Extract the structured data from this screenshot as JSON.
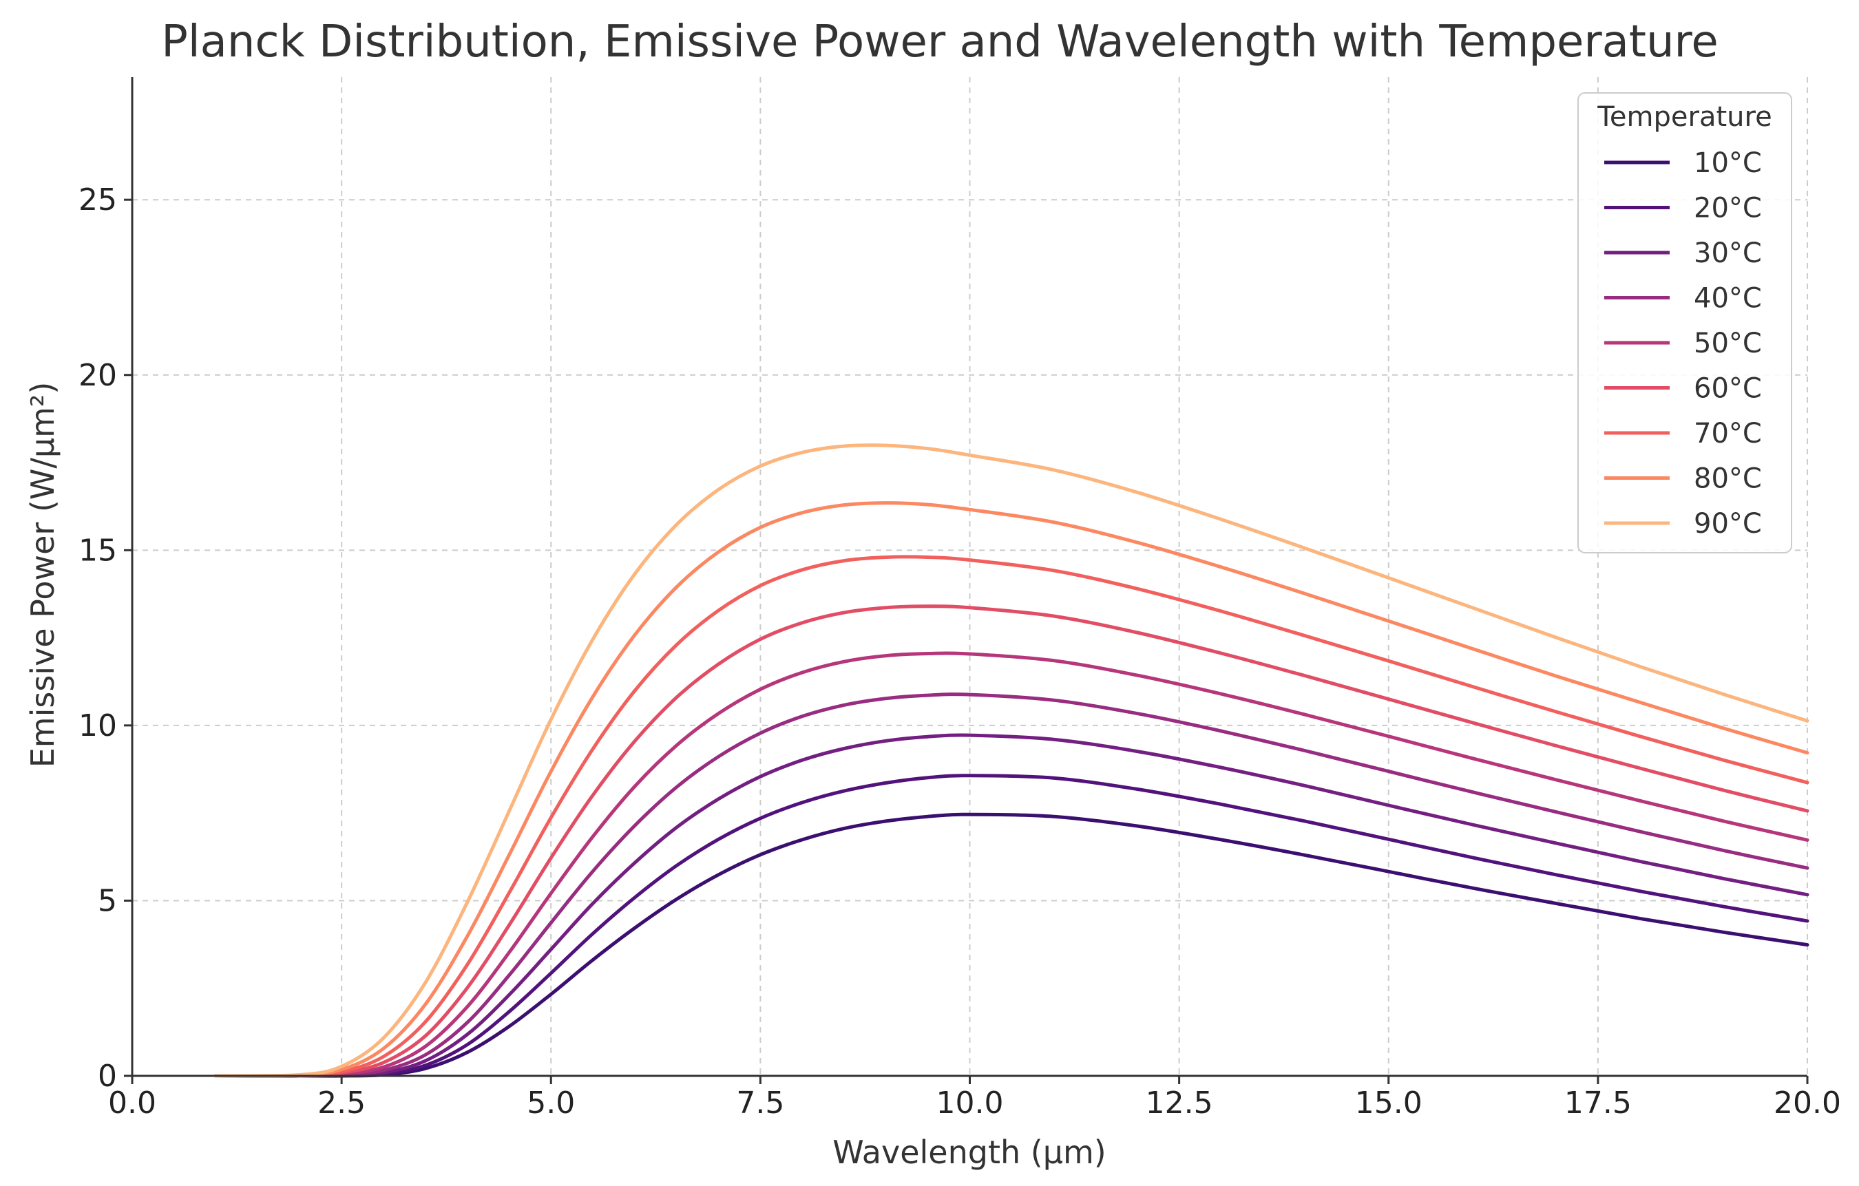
{
  "chart_data": {
    "type": "line",
    "title": "Planck Distribution, Emissive Power and Wavelength with Temperature",
    "xlabel": "Wavelength (µm)",
    "ylabel": "Emissive Power (W/µm²)",
    "xlim": [
      0,
      20
    ],
    "ylim": [
      0,
      28.5
    ],
    "x_ticks": [
      0,
      2.5,
      5,
      7.5,
      10,
      12.5,
      15,
      17.5,
      20
    ],
    "x_tick_labels": [
      "0.0",
      "2.5",
      "5.0",
      "7.5",
      "10.0",
      "12.5",
      "15.0",
      "17.5",
      "20.0"
    ],
    "y_ticks": [
      0,
      5,
      10,
      15,
      20,
      25
    ],
    "y_tick_labels": [
      "0",
      "5",
      "10",
      "15",
      "20",
      "25"
    ],
    "grid": true,
    "legend": {
      "title": "Temperature",
      "position": "top-right"
    },
    "x": [
      1,
      2,
      2.5,
      3,
      3.5,
      4,
      4.5,
      5,
      5.5,
      6,
      6.5,
      7,
      7.5,
      8,
      8.5,
      9,
      9.5,
      10,
      11,
      12,
      13,
      14,
      15,
      16,
      17,
      18,
      19,
      20
    ],
    "series": [
      {
        "name": "10°C",
        "color": "#3b0f70",
        "values": [
          0,
          0,
          0,
          0.03,
          0.21,
          0.67,
          1.41,
          2.33,
          3.31,
          4.22,
          5.04,
          5.74,
          6.31,
          6.74,
          7.06,
          7.27,
          7.4,
          7.46,
          7.4,
          7.13,
          6.74,
          6.3,
          5.83,
          5.36,
          4.92,
          4.49,
          4.1,
          3.74
        ]
      },
      {
        "name": "20°C",
        "color": "#51127c",
        "values": [
          0,
          0,
          0.01,
          0.05,
          0.3,
          0.89,
          1.83,
          2.93,
          4.06,
          5.09,
          6.0,
          6.75,
          7.35,
          7.8,
          8.13,
          8.36,
          8.51,
          8.57,
          8.5,
          8.18,
          7.75,
          7.27,
          6.75,
          6.23,
          5.74,
          5.27,
          4.83,
          4.42
        ]
      },
      {
        "name": "30°C",
        "color": "#721f81",
        "values": [
          0,
          0,
          0.02,
          0.09,
          0.43,
          1.18,
          2.31,
          3.61,
          4.92,
          6.08,
          7.09,
          7.9,
          8.54,
          9.01,
          9.34,
          9.56,
          9.68,
          9.72,
          9.6,
          9.26,
          8.8,
          8.28,
          7.72,
          7.17,
          6.64,
          6.12,
          5.63,
          5.17
        ]
      },
      {
        "name": "40°C",
        "color": "#972c80",
        "values": [
          0,
          0,
          0.03,
          0.16,
          0.6,
          1.52,
          2.87,
          4.37,
          5.84,
          7.14,
          8.24,
          9.11,
          9.78,
          10.26,
          10.58,
          10.77,
          10.86,
          10.88,
          10.72,
          10.34,
          9.84,
          9.28,
          8.69,
          8.1,
          7.53,
          6.97,
          6.43,
          5.93
        ]
      },
      {
        "name": "50°C",
        "color": "#b5367a",
        "values": [
          0,
          0,
          0.05,
          0.25,
          0.84,
          1.97,
          3.52,
          5.21,
          6.83,
          8.26,
          9.43,
          10.34,
          11.03,
          11.51,
          11.82,
          11.99,
          12.05,
          12.04,
          11.85,
          11.43,
          10.9,
          10.31,
          9.69,
          9.06,
          8.45,
          7.85,
          7.27,
          6.73
        ]
      },
      {
        "name": "60°C",
        "color": "#e14d65",
        "values": [
          0,
          0,
          0.08,
          0.38,
          1.14,
          2.51,
          4.3,
          6.22,
          8.01,
          9.55,
          10.8,
          11.75,
          12.46,
          12.93,
          13.22,
          13.36,
          13.4,
          13.36,
          13.12,
          12.65,
          12.06,
          11.42,
          10.75,
          10.08,
          9.42,
          8.78,
          8.15,
          7.56
        ]
      },
      {
        "name": "70°C",
        "color": "#f1605d",
        "values": [
          0,
          0.01,
          0.12,
          0.55,
          1.54,
          3.17,
          5.22,
          7.37,
          9.33,
          10.99,
          12.3,
          13.28,
          13.99,
          14.44,
          14.7,
          14.8,
          14.8,
          14.72,
          14.42,
          13.9,
          13.26,
          12.56,
          11.84,
          11.11,
          10.39,
          9.69,
          9.01,
          8.37
        ]
      },
      {
        "name": "80°C",
        "color": "#fb8861",
        "values": [
          0,
          0.02,
          0.18,
          0.78,
          2.04,
          3.98,
          6.3,
          8.69,
          10.82,
          12.58,
          13.95,
          14.95,
          15.65,
          16.07,
          16.29,
          16.35,
          16.3,
          16.16,
          15.8,
          15.22,
          14.52,
          13.76,
          12.98,
          12.19,
          11.41,
          10.66,
          9.92,
          9.22
        ]
      },
      {
        "name": "90°C",
        "color": "#fcb57d",
        "values": [
          0,
          0.03,
          0.27,
          1.08,
          2.66,
          4.95,
          7.55,
          10.17,
          12.46,
          14.32,
          15.73,
          16.73,
          17.4,
          17.79,
          17.97,
          17.99,
          17.9,
          17.71,
          17.29,
          16.65,
          15.88,
          15.06,
          14.21,
          13.36,
          12.51,
          11.68,
          10.89,
          10.13
        ]
      }
    ]
  }
}
